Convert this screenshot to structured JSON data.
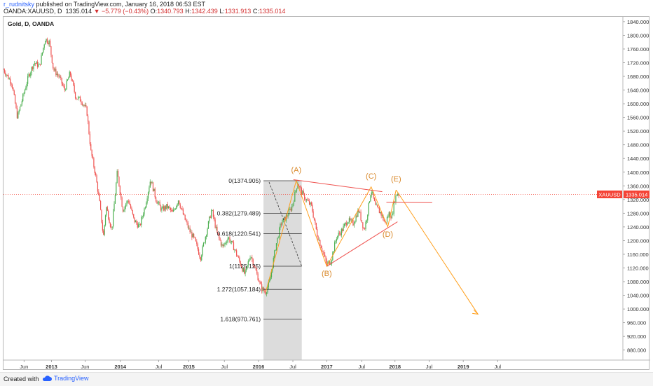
{
  "header": {
    "author": "r_rudnitsky",
    "published": "published on TradingView.com, January 16, 2018 06:53 EST",
    "symbol": "OANDA:XAUUSD, D",
    "last": "1335.014",
    "change_arrow": "▼",
    "change": "−5.779 (−0.43%)",
    "o_label": "O:",
    "o_value": "1340.793",
    "h_label": "H:",
    "h_value": "1342.439",
    "l_label": "L:",
    "l_value": "1331.913",
    "c_label": "C:",
    "c_value": "1335.014"
  },
  "footer": {
    "created_with": "Created with",
    "brand": "TradingView"
  },
  "chart_data": {
    "type": "line",
    "title": "Gold, D, OANDA",
    "ylim": [
      820,
      1850
    ],
    "y_ticks": [
      840,
      880,
      920,
      960,
      1000,
      1040,
      1080,
      1120,
      1160,
      1200,
      1240,
      1280,
      1320,
      1360,
      1400,
      1440,
      1480,
      1520,
      1560,
      1600,
      1640,
      1680,
      1720,
      1760,
      1800,
      1840
    ],
    "x_ticks": [
      {
        "label": "Jun",
        "pos": 0.074
      },
      {
        "label": "2013",
        "pos": 0.173
      },
      {
        "label": "Jun",
        "pos": 0.294
      },
      {
        "label": "2014",
        "pos": 0.421
      },
      {
        "label": "Jul",
        "pos": 0.559
      },
      {
        "label": "2015",
        "pos": 0.668
      },
      {
        "label": "Jul",
        "pos": 0.796
      },
      {
        "label": "2016",
        "pos": 0.919
      },
      {
        "label": "Jul",
        "pos": 1.043
      },
      {
        "label": "2017",
        "pos": 1.165
      },
      {
        "label": "Jul",
        "pos": 1.291
      },
      {
        "label": "2018",
        "pos": 1.411
      },
      {
        "label": "Jul",
        "pos": 1.534
      },
      {
        "label": "2019",
        "pos": 1.657
      },
      {
        "label": "Jul",
        "pos": 1.781
      }
    ],
    "price_path": [
      [
        0.0,
        1700
      ],
      [
        0.03,
        1660
      ],
      [
        0.05,
        1560
      ],
      [
        0.07,
        1620
      ],
      [
        0.09,
        1680
      ],
      [
        0.11,
        1720
      ],
      [
        0.13,
        1710
      ],
      [
        0.15,
        1790
      ],
      [
        0.165,
        1780
      ],
      [
        0.18,
        1700
      ],
      [
        0.2,
        1680
      ],
      [
        0.22,
        1640
      ],
      [
        0.24,
        1690
      ],
      [
        0.26,
        1620
      ],
      [
        0.28,
        1610
      ],
      [
        0.3,
        1580
      ],
      [
        0.315,
        1460
      ],
      [
        0.33,
        1400
      ],
      [
        0.345,
        1320
      ],
      [
        0.36,
        1210
      ],
      [
        0.37,
        1300
      ],
      [
        0.39,
        1230
      ],
      [
        0.41,
        1400
      ],
      [
        0.43,
        1290
      ],
      [
        0.45,
        1320
      ],
      [
        0.47,
        1260
      ],
      [
        0.49,
        1240
      ],
      [
        0.51,
        1300
      ],
      [
        0.53,
        1380
      ],
      [
        0.55,
        1320
      ],
      [
        0.57,
        1290
      ],
      [
        0.59,
        1300
      ],
      [
        0.61,
        1280
      ],
      [
        0.63,
        1320
      ],
      [
        0.65,
        1270
      ],
      [
        0.67,
        1230
      ],
      [
        0.69,
        1200
      ],
      [
        0.71,
        1150
      ],
      [
        0.73,
        1220
      ],
      [
        0.75,
        1290
      ],
      [
        0.77,
        1220
      ],
      [
        0.79,
        1180
      ],
      [
        0.81,
        1210
      ],
      [
        0.83,
        1180
      ],
      [
        0.85,
        1140
      ],
      [
        0.87,
        1100
      ],
      [
        0.89,
        1160
      ],
      [
        0.91,
        1110
      ],
      [
        0.93,
        1060
      ],
      [
        0.945,
        1050
      ],
      [
        0.96,
        1080
      ],
      [
        0.98,
        1180
      ],
      [
        1.0,
        1250
      ],
      [
        1.02,
        1270
      ],
      [
        1.04,
        1300
      ],
      [
        1.06,
        1370
      ],
      [
        1.075,
        1340
      ],
      [
        1.09,
        1320
      ],
      [
        1.11,
        1300
      ],
      [
        1.13,
        1220
      ],
      [
        1.15,
        1170
      ],
      [
        1.165,
        1130
      ],
      [
        1.18,
        1140
      ],
      [
        1.2,
        1210
      ],
      [
        1.22,
        1230
      ],
      [
        1.24,
        1260
      ],
      [
        1.26,
        1250
      ],
      [
        1.28,
        1290
      ],
      [
        1.3,
        1230
      ],
      [
        1.31,
        1270
      ],
      [
        1.325,
        1350
      ],
      [
        1.34,
        1300
      ],
      [
        1.36,
        1280
      ],
      [
        1.375,
        1250
      ],
      [
        1.39,
        1280
      ],
      [
        1.4,
        1270
      ],
      [
        1.41,
        1320
      ],
      [
        1.42,
        1340
      ],
      [
        1.425,
        1335
      ]
    ],
    "last_price": 1335.014,
    "last_price_tag": "XAUUSD",
    "last_price_label": "1335.014",
    "fibonacci": {
      "levels": [
        {
          "label": "0(1374.905)",
          "price": 1374.905
        },
        {
          "label": "0.382(1279.489)",
          "price": 1279.489
        },
        {
          "label": "0.618(1220.541)",
          "price": 1220.541
        },
        {
          "label": "1(1125.125)",
          "price": 1125.125
        },
        {
          "label": "1.272(1057.184)",
          "price": 1057.184
        },
        {
          "label": "1.618(970.761)",
          "price": 970.761
        }
      ]
    },
    "waves": [
      {
        "label": "(A)",
        "x": 1.055,
        "y": 1374.9
      },
      {
        "label": "(B)",
        "x": 1.165,
        "y": 1125.1
      },
      {
        "label": "(C)",
        "x": 1.325,
        "y": 1357
      },
      {
        "label": "(D)",
        "x": 1.385,
        "y": 1240
      },
      {
        "label": "(E)",
        "x": 1.415,
        "y": 1348
      }
    ],
    "colors": {
      "bull": "#4caf50",
      "bear": "#ef5350",
      "wave": "#ff9f1c",
      "wave_label": "#d9892b",
      "trendline": "#ef5350",
      "fib_zone": "#d6d6d6",
      "last_price": "#f44336"
    }
  }
}
